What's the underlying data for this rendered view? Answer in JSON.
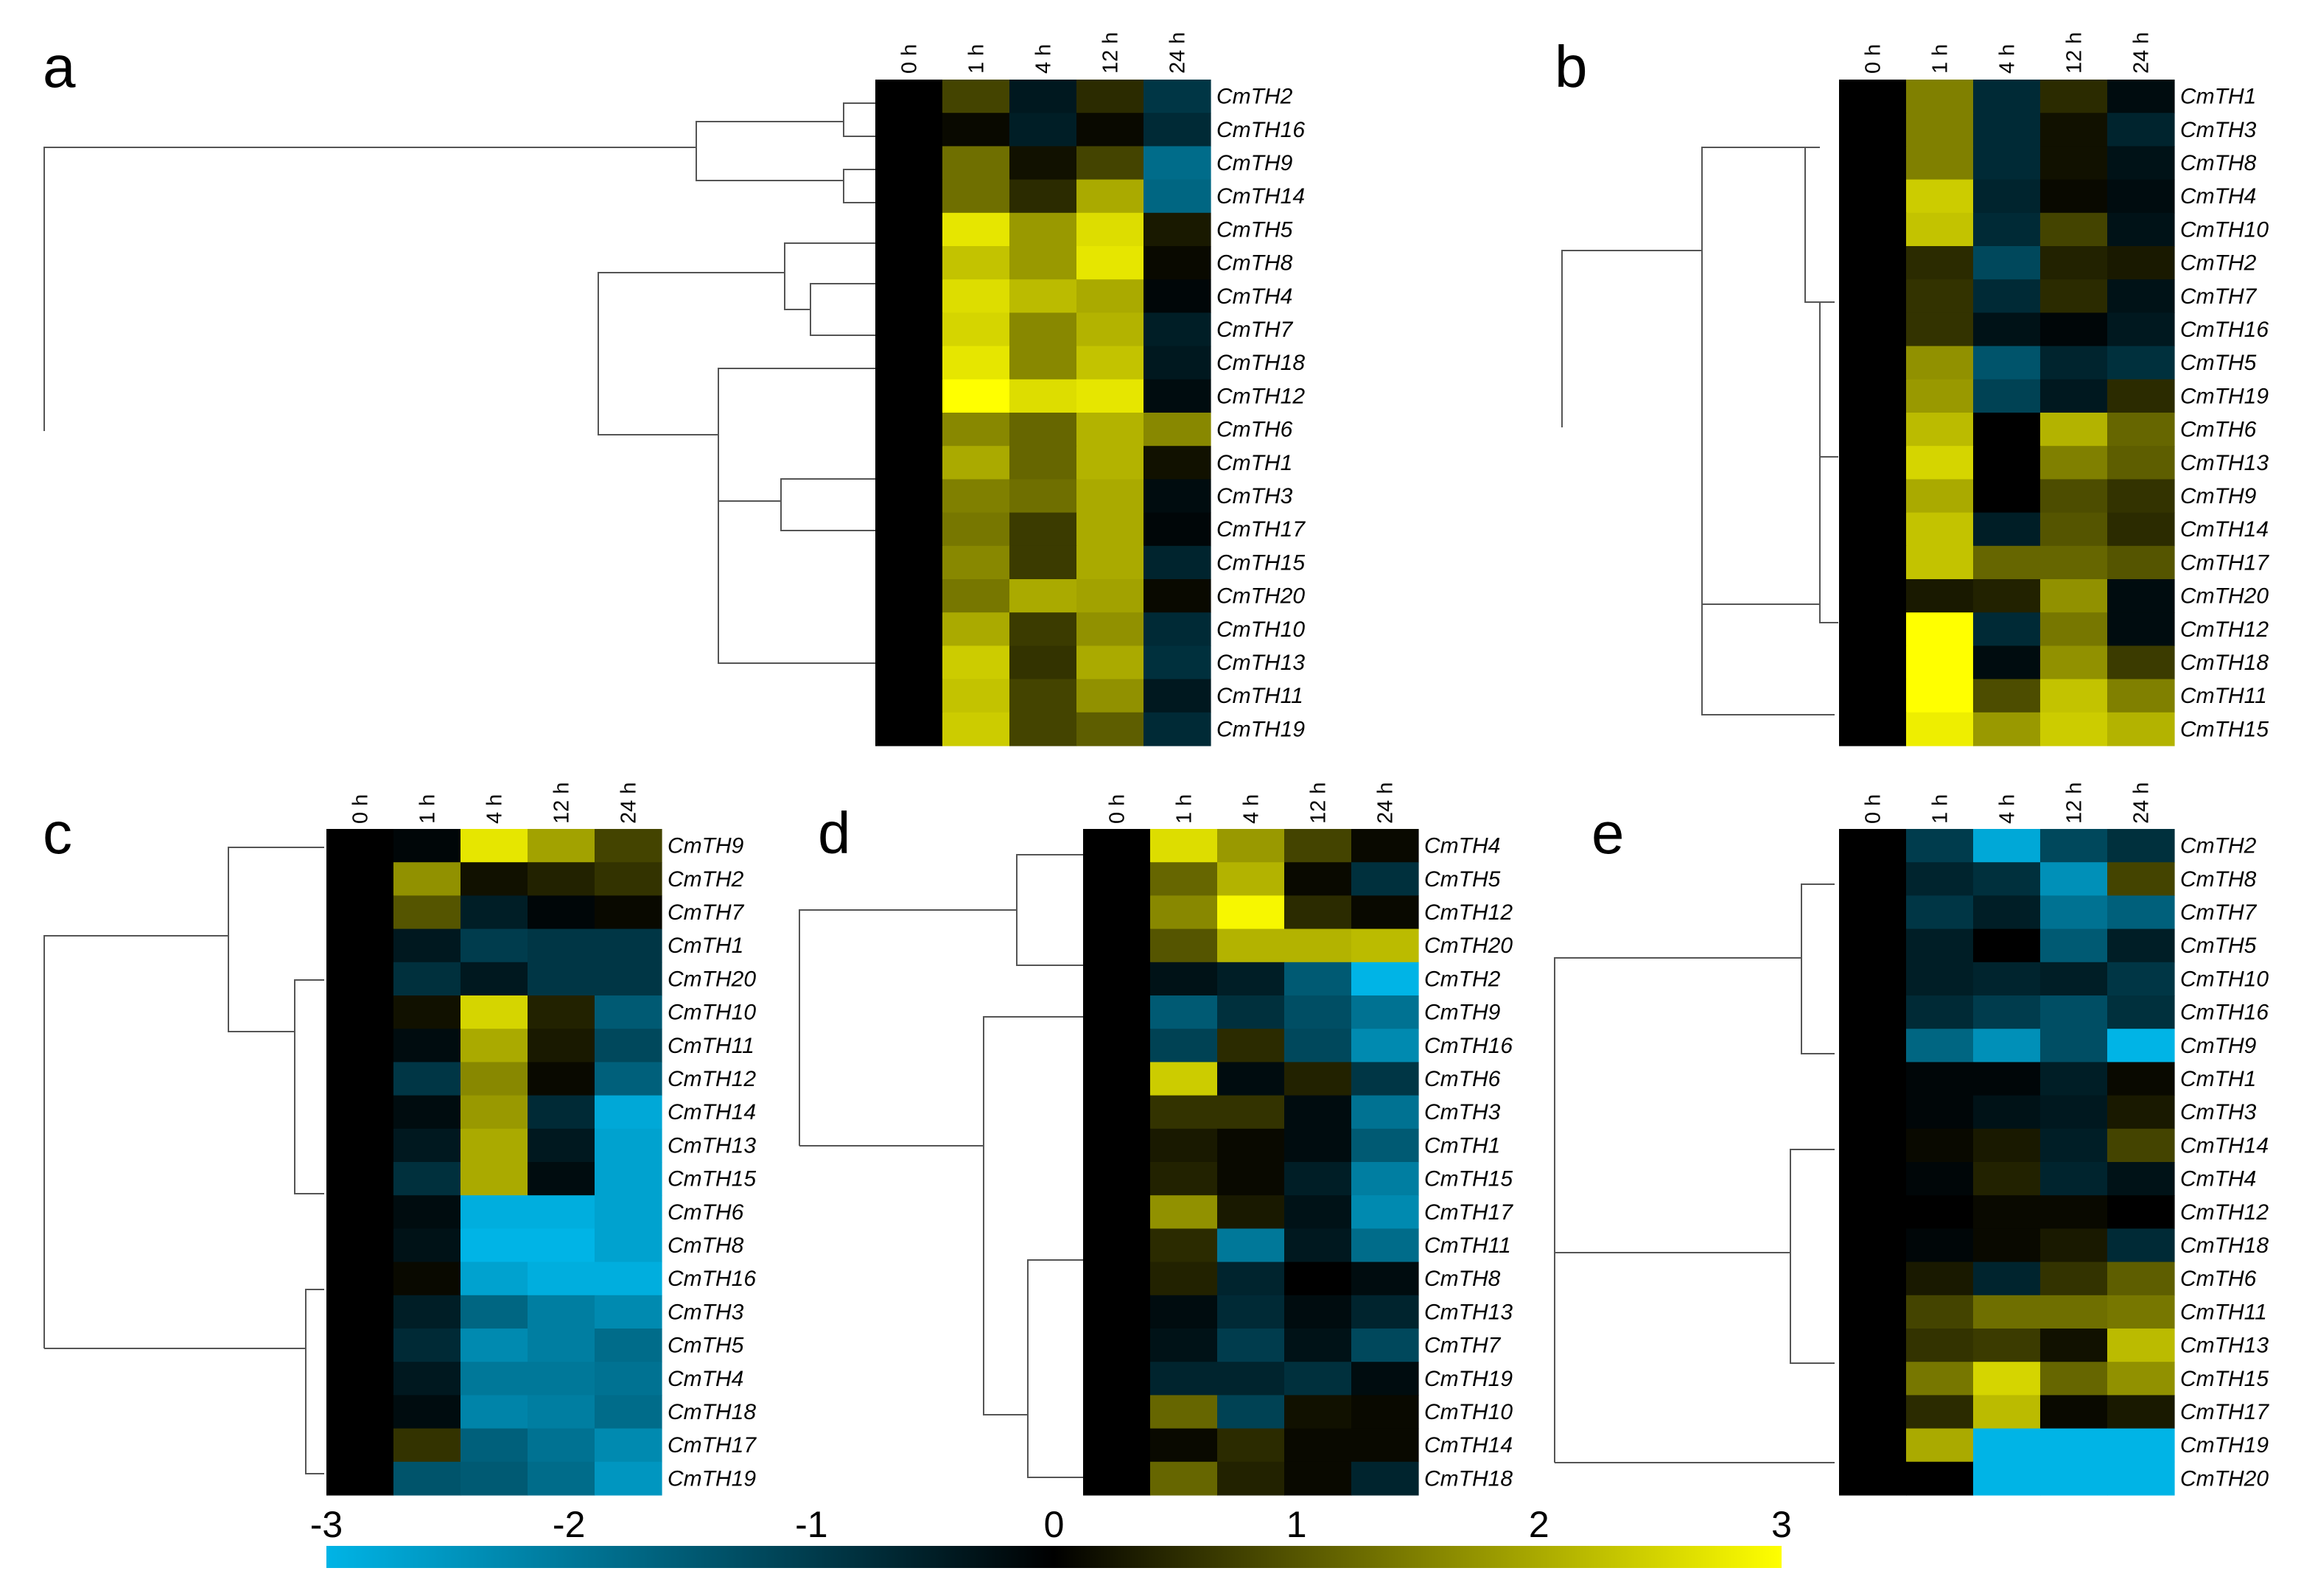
{
  "chart_data": {
    "type": "heatmap",
    "color_scale": {
      "low_color": "#00b4e6",
      "mid_color": "#000000",
      "high_color": "#ffff00",
      "min": -3,
      "max": 3,
      "tick_labels": [
        "-3",
        "-2",
        "-1",
        "0",
        "1",
        "2",
        "3"
      ]
    },
    "panels": [
      {
        "letter": "a",
        "columns": [
          "0 h",
          "1 h",
          "4 h",
          "12 h",
          "24 h"
        ],
        "rows": [
          "CmTH2",
          "CmTH16",
          "CmTH9",
          "CmTH14",
          "CmTH5",
          "CmTH8",
          "CmTH4",
          "CmTH7",
          "CmTH18",
          "CmTH12",
          "CmTH6",
          "CmTH1",
          "CmTH3",
          "CmTH17",
          "CmTH15",
          "CmTH20",
          "CmTH10",
          "CmTH13",
          "CmTH11",
          "CmTH19"
        ],
        "values": [
          [
            0,
            0.8,
            -0.4,
            0.5,
            -0.9
          ],
          [
            0,
            0.1,
            -0.5,
            0.1,
            -0.7
          ],
          [
            0,
            1.3,
            0.2,
            0.8,
            -1.8
          ],
          [
            0,
            1.3,
            0.5,
            2.0,
            -1.7
          ],
          [
            0,
            2.7,
            1.8,
            2.6,
            0.3
          ],
          [
            0,
            2.3,
            1.8,
            2.7,
            0.1
          ],
          [
            0,
            2.6,
            2.2,
            2.0,
            -0.1
          ],
          [
            0,
            2.5,
            1.6,
            2.1,
            -0.5
          ],
          [
            0,
            2.7,
            1.6,
            2.3,
            -0.4
          ],
          [
            0,
            3.0,
            2.6,
            2.7,
            -0.2
          ],
          [
            0,
            1.6,
            1.2,
            2.1,
            1.6
          ],
          [
            0,
            2.0,
            1.2,
            2.1,
            0.2
          ],
          [
            0,
            1.5,
            1.3,
            2.0,
            -0.2
          ],
          [
            0,
            1.4,
            0.7,
            2.0,
            -0.1
          ],
          [
            0,
            1.6,
            0.7,
            2.0,
            -0.6
          ],
          [
            0,
            1.4,
            2.0,
            1.9,
            0.1
          ],
          [
            0,
            2.0,
            0.7,
            1.7,
            -0.7
          ],
          [
            0,
            2.4,
            0.6,
            2.0,
            -0.8
          ],
          [
            0,
            2.3,
            0.8,
            1.7,
            -0.4
          ],
          [
            0,
            2.4,
            0.8,
            1.1,
            -0.7
          ]
        ]
      },
      {
        "letter": "b",
        "columns": [
          "0 h",
          "1 h",
          "4 h",
          "12 h",
          "24 h"
        ],
        "rows": [
          "CmTH1",
          "CmTH3",
          "CmTH8",
          "CmTH4",
          "CmTH10",
          "CmTH2",
          "CmTH7",
          "CmTH16",
          "CmTH5",
          "CmTH19",
          "CmTH6",
          "CmTH13",
          "CmTH9",
          "CmTH14",
          "CmTH17",
          "CmTH20",
          "CmTH12",
          "CmTH18",
          "CmTH11",
          "CmTH15"
        ],
        "values": [
          [
            0,
            1.5,
            -0.7,
            0.5,
            -0.2
          ],
          [
            0,
            1.5,
            -0.7,
            0.2,
            -0.6
          ],
          [
            0,
            1.5,
            -0.7,
            0.2,
            -0.3
          ],
          [
            0,
            2.4,
            -0.6,
            0.1,
            -0.2
          ],
          [
            0,
            2.3,
            -0.7,
            0.8,
            -0.3
          ],
          [
            0,
            0.5,
            -1.2,
            0.4,
            0.3
          ],
          [
            0,
            0.6,
            -0.7,
            0.5,
            -0.3
          ],
          [
            0,
            0.6,
            -0.3,
            -0.1,
            -0.4
          ],
          [
            0,
            1.7,
            -1.4,
            -0.6,
            -0.8
          ],
          [
            0,
            1.8,
            -1.1,
            -0.4,
            0.5
          ],
          [
            0,
            2.2,
            0.0,
            2.1,
            1.2
          ],
          [
            0,
            2.5,
            0.0,
            1.5,
            1.1
          ],
          [
            0,
            2.0,
            0.0,
            0.9,
            0.6
          ],
          [
            0,
            2.3,
            -0.5,
            1.0,
            0.5
          ],
          [
            0,
            2.3,
            1.2,
            1.2,
            1.0
          ],
          [
            0,
            0.3,
            0.4,
            1.7,
            -0.2
          ],
          [
            0,
            3.0,
            -0.7,
            1.4,
            -0.2
          ],
          [
            0,
            3.0,
            -0.2,
            1.7,
            0.7
          ],
          [
            0,
            3.0,
            0.9,
            2.3,
            1.5
          ],
          [
            0,
            2.8,
            1.8,
            2.4,
            2.1
          ]
        ]
      },
      {
        "letter": "c",
        "columns": [
          "0 h",
          "1 h",
          "4 h",
          "12 h",
          "24 h"
        ],
        "rows": [
          "CmTH9",
          "CmTH2",
          "CmTH7",
          "CmTH1",
          "CmTH20",
          "CmTH10",
          "CmTH11",
          "CmTH12",
          "CmTH14",
          "CmTH13",
          "CmTH15",
          "CmTH6",
          "CmTH8",
          "CmTH16",
          "CmTH3",
          "CmTH5",
          "CmTH4",
          "CmTH18",
          "CmTH17",
          "CmTH19"
        ],
        "values": [
          [
            0,
            -0.1,
            2.7,
            1.9,
            0.8
          ],
          [
            0,
            1.7,
            0.2,
            0.4,
            0.6
          ],
          [
            0,
            1.0,
            -0.5,
            -0.1,
            0.1
          ],
          [
            0,
            -0.4,
            -1.0,
            -0.9,
            -0.9
          ],
          [
            0,
            -0.8,
            -0.4,
            -0.9,
            -0.9
          ],
          [
            0,
            0.2,
            2.5,
            0.4,
            -1.5
          ],
          [
            0,
            -0.2,
            2.0,
            0.3,
            -1.2
          ],
          [
            0,
            -0.9,
            1.6,
            0.1,
            -1.6
          ],
          [
            0,
            -0.2,
            1.8,
            -0.7,
            -2.8
          ],
          [
            0,
            -0.4,
            2.0,
            -0.4,
            -2.7
          ],
          [
            0,
            -0.8,
            2.0,
            -0.2,
            -2.7
          ],
          [
            0,
            -0.2,
            -2.9,
            -2.9,
            -2.7
          ],
          [
            0,
            -0.3,
            -3.0,
            -3.0,
            -2.7
          ],
          [
            0,
            0.1,
            -2.7,
            -2.9,
            -2.9
          ],
          [
            0,
            -0.5,
            -1.7,
            -2.1,
            -2.3
          ],
          [
            0,
            -0.7,
            -2.3,
            -2.1,
            -1.8
          ],
          [
            0,
            -0.4,
            -2.0,
            -2.0,
            -1.9
          ],
          [
            0,
            -0.2,
            -2.2,
            -2.1,
            -1.8
          ],
          [
            0,
            0.6,
            -1.6,
            -1.9,
            -2.3
          ],
          [
            0,
            -1.4,
            -1.5,
            -1.8,
            -2.5
          ]
        ]
      },
      {
        "letter": "d",
        "columns": [
          "0 h",
          "1 h",
          "4 h",
          "12 h",
          "24 h"
        ],
        "rows": [
          "CmTH4",
          "CmTH5",
          "CmTH12",
          "CmTH20",
          "CmTH2",
          "CmTH9",
          "CmTH16",
          "CmTH6",
          "CmTH3",
          "CmTH1",
          "CmTH15",
          "CmTH17",
          "CmTH11",
          "CmTH8",
          "CmTH13",
          "CmTH7",
          "CmTH19",
          "CmTH10",
          "CmTH14",
          "CmTH18"
        ],
        "values": [
          [
            0,
            2.6,
            1.8,
            0.8,
            0.1
          ],
          [
            0,
            1.2,
            2.1,
            0.1,
            -0.8
          ],
          [
            0,
            1.6,
            2.9,
            0.5,
            0.1
          ],
          [
            0,
            1.0,
            2.1,
            2.1,
            2.2
          ],
          [
            0,
            -0.3,
            -0.5,
            -1.5,
            -3.0
          ],
          [
            0,
            -1.5,
            -0.8,
            -1.3,
            -1.9
          ],
          [
            0,
            -1.1,
            0.5,
            -1.2,
            -2.3
          ],
          [
            0,
            2.4,
            -0.2,
            0.4,
            -0.9
          ],
          [
            0,
            0.6,
            0.6,
            -0.2,
            -1.9
          ],
          [
            0,
            0.3,
            0.1,
            -0.2,
            -1.5
          ],
          [
            0,
            0.4,
            0.1,
            -0.5,
            -2.1
          ],
          [
            0,
            1.7,
            0.3,
            -0.3,
            -2.3
          ],
          [
            0,
            0.5,
            -2.0,
            -0.4,
            -1.8
          ],
          [
            0,
            0.4,
            -0.6,
            0.0,
            -0.2
          ],
          [
            0,
            -0.2,
            -0.7,
            -0.2,
            -0.6
          ],
          [
            0,
            -0.3,
            -1.0,
            -0.3,
            -1.2
          ],
          [
            0,
            -0.6,
            -0.6,
            -0.8,
            -0.2
          ],
          [
            0,
            1.2,
            -1.1,
            0.2,
            0.1
          ],
          [
            0,
            0.1,
            0.5,
            0.1,
            0.1
          ],
          [
            0,
            1.2,
            0.4,
            0.1,
            -0.6
          ]
        ]
      },
      {
        "letter": "e",
        "columns": [
          "0 h",
          "1 h",
          "4 h",
          "12 h",
          "24 h"
        ],
        "rows": [
          "CmTH2",
          "CmTH8",
          "CmTH7",
          "CmTH5",
          "CmTH10",
          "CmTH16",
          "CmTH9",
          "CmTH1",
          "CmTH3",
          "CmTH14",
          "CmTH4",
          "CmTH12",
          "CmTH18",
          "CmTH6",
          "CmTH11",
          "CmTH13",
          "CmTH15",
          "CmTH17",
          "CmTH19",
          "CmTH20"
        ],
        "values": [
          [
            0,
            -1.0,
            -2.8,
            -1.2,
            -0.8
          ],
          [
            0,
            -0.6,
            -0.8,
            -2.4,
            0.8
          ],
          [
            0,
            -0.9,
            -0.5,
            -1.9,
            -1.6
          ],
          [
            0,
            -0.5,
            0.0,
            -1.5,
            -0.5
          ],
          [
            0,
            -0.5,
            -0.6,
            -0.5,
            -0.9
          ],
          [
            0,
            -0.7,
            -1.0,
            -1.3,
            -0.8
          ],
          [
            0,
            -1.7,
            -2.4,
            -1.3,
            -3.0
          ],
          [
            0,
            -0.1,
            -0.1,
            -0.5,
            0.1
          ],
          [
            0,
            -0.1,
            -0.3,
            -0.4,
            0.3
          ],
          [
            0,
            0.1,
            0.3,
            -0.5,
            0.8
          ],
          [
            0,
            -0.1,
            0.4,
            -0.6,
            -0.3
          ],
          [
            0,
            0.0,
            0.1,
            0.1,
            0.0
          ],
          [
            0,
            -0.1,
            0.1,
            0.3,
            -0.7
          ],
          [
            0,
            0.3,
            -0.6,
            0.6,
            1.1
          ],
          [
            0,
            0.8,
            1.3,
            1.3,
            1.4
          ],
          [
            0,
            0.6,
            0.7,
            0.2,
            2.2
          ],
          [
            0,
            1.4,
            2.5,
            1.2,
            1.7
          ],
          [
            0,
            0.5,
            2.2,
            0.1,
            0.3
          ],
          [
            0,
            2.0,
            -3.0,
            -3.0,
            -3.0
          ],
          [
            0,
            0.0,
            -3.0,
            -3.0,
            -3.0
          ]
        ]
      }
    ]
  }
}
